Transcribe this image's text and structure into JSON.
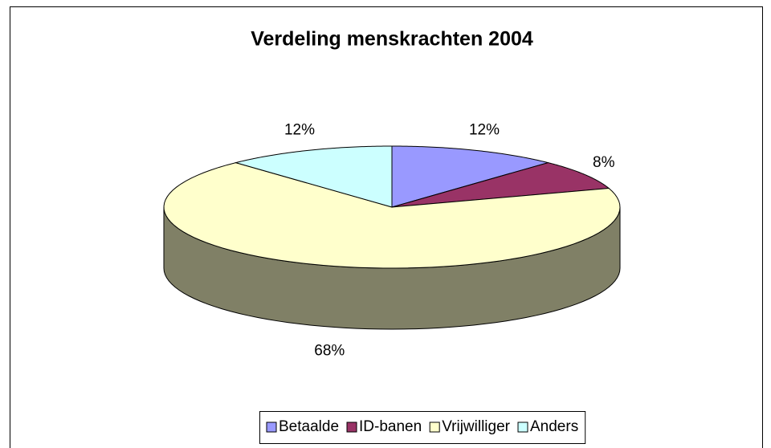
{
  "chart_data": {
    "type": "pie3d",
    "title": "Verdeling menskrachten 2004",
    "categories": [
      "Betaalde",
      "ID-banen",
      "Vrijwilliger",
      "Anders"
    ],
    "values": [
      12,
      8,
      68,
      12
    ],
    "value_labels": [
      "12%",
      "8%",
      "68%",
      "12%"
    ],
    "colors": [
      "#9999ff",
      "#993366",
      "#ffffcc",
      "#ccffff"
    ],
    "legend": "bottom"
  }
}
